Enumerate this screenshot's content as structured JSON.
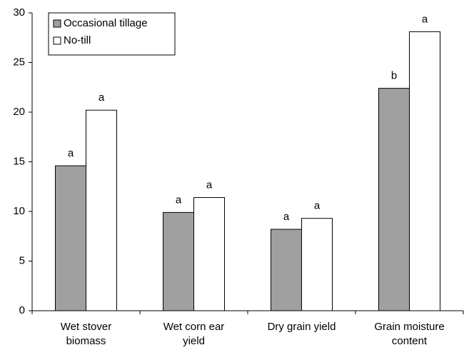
{
  "chart_data": {
    "type": "bar",
    "categories": [
      [
        "Wet stover",
        "biomass"
      ],
      [
        "Wet corn ear",
        "yield"
      ],
      [
        "Dry grain yield"
      ],
      [
        "Grain moisture",
        "content"
      ]
    ],
    "series": [
      {
        "name": "Occasional tillage",
        "color": "#a0a0a0",
        "values": [
          14.6,
          9.9,
          8.2,
          22.4
        ],
        "letters": [
          "a",
          "a",
          "a",
          "b"
        ]
      },
      {
        "name": "No-till",
        "color": "#ffffff",
        "values": [
          20.2,
          11.4,
          9.3,
          28.1
        ],
        "letters": [
          "a",
          "a",
          "a",
          "a"
        ]
      }
    ],
    "ylim": [
      0,
      30
    ],
    "yticks": [
      0,
      5,
      10,
      15,
      20,
      25,
      30
    ],
    "legend": "upper-left"
  }
}
